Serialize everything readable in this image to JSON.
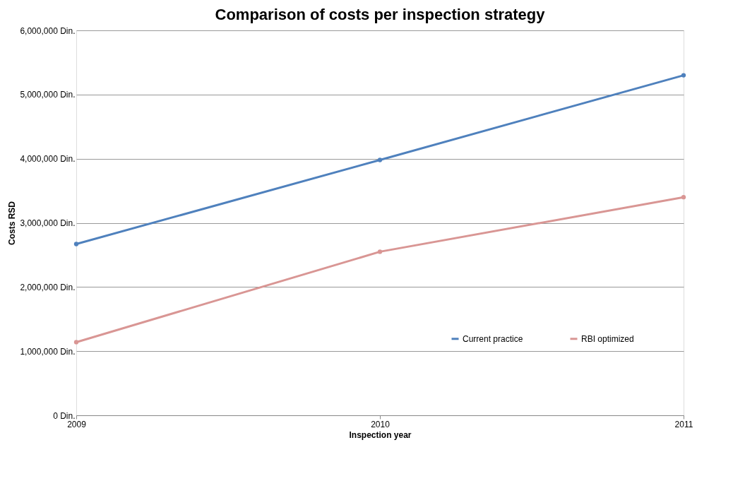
{
  "chart_data": {
    "type": "line",
    "title": "Comparison of costs per inspection strategy",
    "xlabel": "Inspection year",
    "ylabel": "Costs RSD",
    "x": [
      2009,
      2010,
      2011
    ],
    "series": [
      {
        "name": "Current practice",
        "color": "#4f81bd",
        "values": [
          2670000,
          3980000,
          5300000
        ]
      },
      {
        "name": "RBI optimized",
        "color": "#d99694",
        "values": [
          1140000,
          2550000,
          3400000
        ]
      }
    ],
    "xlim": [
      2009,
      2011
    ],
    "xticks": [
      2009,
      2010,
      2011
    ],
    "ylim": [
      0,
      6000000
    ],
    "yticks": [
      {
        "value": 0,
        "label": "0 Din."
      },
      {
        "value": 1000000,
        "label": "1,000,000 Din."
      },
      {
        "value": 2000000,
        "label": "2,000,000 Din."
      },
      {
        "value": 3000000,
        "label": "3,000,000 Din."
      },
      {
        "value": 4000000,
        "label": "4,000,000 Din."
      },
      {
        "value": 5000000,
        "label": "5,000,000 Din."
      },
      {
        "value": 6000000,
        "label": "6,000,000 Din."
      }
    ],
    "grid": "y",
    "legend": "right",
    "marker": "circle",
    "line_style": "solid"
  }
}
